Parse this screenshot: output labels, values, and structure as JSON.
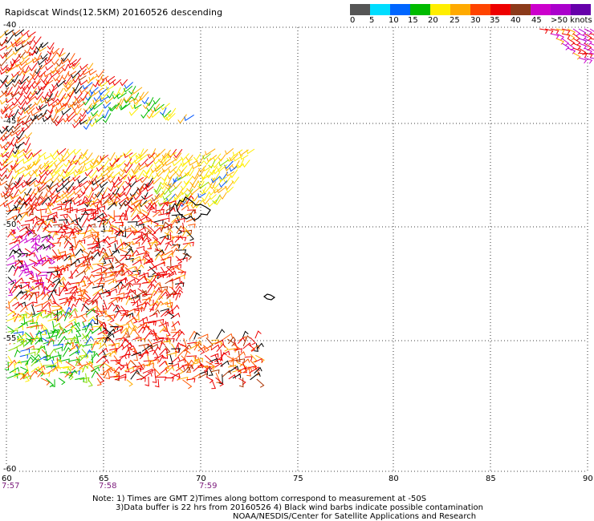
{
  "title": "Rapidscat Winds(12.5KM) 20160526 descending",
  "legend": {
    "colors": [
      "#555555",
      "#a0a0a0",
      "#00aaff",
      "#0055ff",
      "#00bb00",
      "#88dd00",
      "#ffee00",
      "#ffaa00",
      "#ff5500",
      "#ee0000",
      "#aa3300",
      "#663322",
      "#cc00cc",
      "#8800cc",
      "#330066"
    ],
    "labels": [
      "0",
      "5",
      "10",
      "15",
      "20",
      "25",
      "30",
      "35",
      "40",
      "45",
      ">50 knots"
    ]
  },
  "lat_labels": [
    "-40",
    "-45",
    "-50",
    "-55",
    "-60"
  ],
  "lon_labels": [
    "60",
    "65",
    "70",
    "75",
    "80",
    "85",
    "90"
  ],
  "time_labels": [
    "7:57",
    "7:58",
    "7:59"
  ],
  "notes": [
    "Note: 1) Times are GMT 2)Times along bottom correspond to measurement at -50S",
    "3)Data buffer is 22 hrs from 20160526 4) Black wind barbs indicate possible contamination",
    "NOAA/NESDIS/Center for Satellite Applications and Research"
  ],
  "map": {
    "lat_range": [
      -60,
      -40
    ],
    "lon_range": [
      60,
      90
    ],
    "gridlines": "dotted",
    "islands": [
      "Kerguelen Islands",
      "Heard Island"
    ]
  }
}
